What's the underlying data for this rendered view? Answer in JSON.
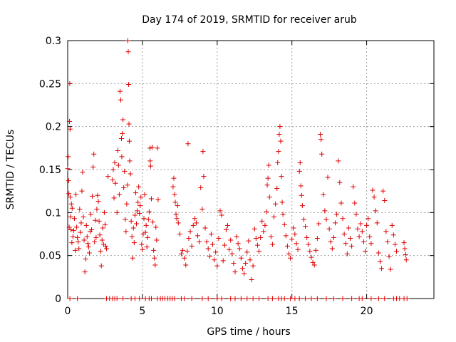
{
  "chart_data": {
    "type": "scatter",
    "title": "Day 174 of 2019, SRMTID for receiver arub",
    "xlabel": "GPS time / hours",
    "ylabel": "SRMTID / TECUs",
    "xlim": [
      0,
      24.5
    ],
    "ylim": [
      0,
      0.3
    ],
    "x_ticks": [
      0,
      5,
      10,
      15,
      20
    ],
    "x_tick_labels": [
      "0",
      "5",
      "10",
      "15",
      "20"
    ],
    "y_ticks": [
      0,
      0.05,
      0.1,
      0.15,
      0.2,
      0.25,
      0.3
    ],
    "y_tick_labels": [
      "0",
      "0.05",
      "0.1",
      "0.15",
      "0.2",
      "0.25",
      "0.3"
    ],
    "grid": true,
    "marker": "plus",
    "series": [
      {
        "name": "SRMTID",
        "color": "#dd0000",
        "points": [
          [
            0.0,
            0.151
          ],
          [
            0.03,
            0.165
          ],
          [
            0.06,
            0.137
          ],
          [
            0.08,
            0.122
          ],
          [
            0.1,
            0.083
          ],
          [
            0.12,
            0.206
          ],
          [
            0.14,
            0.25
          ],
          [
            0.16,
            0.197
          ],
          [
            0.18,
            0.118
          ],
          [
            0.2,
            0.095
          ],
          [
            0.22,
            0.08
          ],
          [
            0.25,
            0.11
          ],
          [
            0.28,
            0.065
          ],
          [
            0.3,
            0.105
          ],
          [
            0.35,
            0.072
          ],
          [
            0.4,
            0.079
          ],
          [
            0.45,
            0.093
          ],
          [
            0.5,
            0.056
          ],
          [
            0.55,
            0.121
          ],
          [
            0.6,
            0.083
          ],
          [
            0.65,
            0.071
          ],
          [
            0.7,
            0.066
          ],
          [
            0.75,
            0.058
          ],
          [
            0.8,
            0.104
          ],
          [
            0.85,
            0.077
          ],
          [
            0.9,
            0.088
          ],
          [
            0.95,
            0.125
          ],
          [
            1.0,
            0.147
          ],
          [
            1.05,
            0.095
          ],
          [
            1.1,
            0.068
          ],
          [
            1.15,
            0.031
          ],
          [
            1.2,
            0.046
          ],
          [
            1.25,
            0.085
          ],
          [
            1.3,
            0.072
          ],
          [
            1.35,
            0.064
          ],
          [
            1.4,
            0.06
          ],
          [
            1.45,
            0.053
          ],
          [
            1.5,
            0.078
          ],
          [
            1.55,
            0.098
          ],
          [
            1.6,
            0.08
          ],
          [
            1.65,
            0.119
          ],
          [
            1.7,
            0.153
          ],
          [
            1.75,
            0.168
          ],
          [
            1.8,
            0.066
          ],
          [
            1.85,
            0.091
          ],
          [
            1.9,
            0.071
          ],
          [
            1.95,
            0.104
          ],
          [
            2.0,
            0.12
          ],
          [
            2.05,
            0.113
          ],
          [
            2.1,
            0.09
          ],
          [
            2.15,
            0.074
          ],
          [
            2.2,
            0.055
          ],
          [
            2.25,
            0.038
          ],
          [
            2.3,
            0.068
          ],
          [
            2.35,
            0.082
          ],
          [
            2.4,
            0.063
          ],
          [
            2.45,
            0.1
          ],
          [
            2.5,
            0.086
          ],
          [
            2.55,
            0.061
          ],
          [
            2.6,
            0.058
          ],
          [
            2.7,
            0.142
          ],
          [
            3.0,
            0.138
          ],
          [
            3.05,
            0.15
          ],
          [
            3.1,
            0.117
          ],
          [
            3.15,
            0.158
          ],
          [
            3.2,
            0.134
          ],
          [
            3.3,
            0.1
          ],
          [
            3.35,
            0.172
          ],
          [
            3.4,
            0.155
          ],
          [
            3.45,
            0.121
          ],
          [
            3.5,
            0.241
          ],
          [
            3.55,
            0.231
          ],
          [
            3.6,
            0.186
          ],
          [
            3.62,
            0.165
          ],
          [
            3.65,
            0.192
          ],
          [
            3.7,
            0.208
          ],
          [
            3.75,
            0.129
          ],
          [
            3.8,
            0.148
          ],
          [
            3.85,
            0.092
          ],
          [
            3.9,
            0.078
          ],
          [
            3.95,
            0.11
          ],
          [
            4.0,
            0.132
          ],
          [
            4.02,
            0.3
          ],
          [
            4.05,
            0.287
          ],
          [
            4.08,
            0.249
          ],
          [
            4.1,
            0.203
          ],
          [
            4.12,
            0.183
          ],
          [
            4.15,
            0.16
          ],
          [
            4.2,
            0.145
          ],
          [
            4.25,
            0.09
          ],
          [
            4.3,
            0.072
          ],
          [
            4.35,
            0.047
          ],
          [
            4.4,
            0.082
          ],
          [
            4.45,
            0.065
          ],
          [
            4.5,
            0.097
          ],
          [
            4.55,
            0.123
          ],
          [
            4.6,
            0.087
          ],
          [
            4.65,
            0.102
          ],
          [
            4.7,
            0.112
          ],
          [
            4.75,
            0.13
          ],
          [
            4.8,
            0.099
          ],
          [
            4.85,
            0.108
          ],
          [
            4.9,
            0.118
          ],
          [
            4.95,
            0.063
          ],
          [
            5.0,
            0.057
          ],
          [
            5.05,
            0.075
          ],
          [
            5.1,
            0.093
          ],
          [
            5.15,
            0.121
          ],
          [
            5.2,
            0.077
          ],
          [
            5.25,
            0.085
          ],
          [
            5.3,
            0.06
          ],
          [
            5.35,
            0.071
          ],
          [
            5.4,
            0.092
          ],
          [
            5.45,
            0.101
          ],
          [
            5.5,
            0.175
          ],
          [
            5.52,
            0.16
          ],
          [
            5.55,
            0.154
          ],
          [
            5.6,
            0.116
          ],
          [
            5.65,
            0.176
          ],
          [
            5.7,
            0.089
          ],
          [
            5.75,
            0.056
          ],
          [
            5.8,
            0.047
          ],
          [
            5.85,
            0.039
          ],
          [
            5.9,
            0.083
          ],
          [
            5.95,
            0.068
          ],
          [
            6.0,
            0.175
          ],
          [
            6.05,
            0.115
          ],
          [
            7.05,
            0.13
          ],
          [
            7.1,
            0.14
          ],
          [
            7.15,
            0.121
          ],
          [
            7.2,
            0.112
          ],
          [
            7.25,
            0.098
          ],
          [
            7.3,
            0.093
          ],
          [
            7.35,
            0.108
          ],
          [
            7.4,
            0.088
          ],
          [
            7.5,
            0.075
          ],
          [
            7.6,
            0.052
          ],
          [
            7.7,
            0.056
          ],
          [
            7.8,
            0.047
          ],
          [
            7.9,
            0.039
          ],
          [
            8.0,
            0.055
          ],
          [
            8.05,
            0.18
          ],
          [
            8.1,
            0.07
          ],
          [
            8.2,
            0.078
          ],
          [
            8.3,
            0.061
          ],
          [
            8.4,
            0.085
          ],
          [
            8.5,
            0.093
          ],
          [
            8.6,
            0.088
          ],
          [
            8.7,
            0.073
          ],
          [
            8.8,
            0.066
          ],
          [
            8.9,
            0.129
          ],
          [
            9.0,
            0.104
          ],
          [
            9.05,
            0.171
          ],
          [
            9.1,
            0.142
          ],
          [
            9.2,
            0.082
          ],
          [
            9.3,
            0.066
          ],
          [
            9.4,
            0.058
          ],
          [
            9.5,
            0.049
          ],
          [
            9.6,
            0.075
          ],
          [
            9.7,
            0.063
          ],
          [
            9.8,
            0.045
          ],
          [
            9.9,
            0.054
          ],
          [
            10.0,
            0.038
          ],
          [
            10.1,
            0.07
          ],
          [
            10.2,
            0.102
          ],
          [
            10.3,
            0.097
          ],
          [
            10.4,
            0.044
          ],
          [
            10.5,
            0.062
          ],
          [
            10.6,
            0.08
          ],
          [
            10.7,
            0.085
          ],
          [
            10.8,
            0.057
          ],
          [
            10.9,
            0.068
          ],
          [
            11.0,
            0.052
          ],
          [
            11.1,
            0.041
          ],
          [
            11.2,
            0.031
          ],
          [
            11.3,
            0.072
          ],
          [
            11.4,
            0.064
          ],
          [
            11.5,
            0.058
          ],
          [
            11.6,
            0.047
          ],
          [
            11.7,
            0.035
          ],
          [
            11.8,
            0.029
          ],
          [
            11.9,
            0.041
          ],
          [
            12.0,
            0.054
          ],
          [
            12.1,
            0.067
          ],
          [
            12.2,
            0.045
          ],
          [
            12.3,
            0.022
          ],
          [
            12.4,
            0.038
          ],
          [
            12.5,
            0.081
          ],
          [
            12.6,
            0.07
          ],
          [
            12.7,
            0.062
          ],
          [
            12.8,
            0.055
          ],
          [
            12.9,
            0.071
          ],
          [
            13.0,
            0.09
          ],
          [
            13.1,
            0.078
          ],
          [
            13.2,
            0.085
          ],
          [
            13.3,
            0.101
          ],
          [
            13.35,
            0.132
          ],
          [
            13.4,
            0.14
          ],
          [
            13.45,
            0.155
          ],
          [
            13.5,
            0.118
          ],
          [
            13.6,
            0.072
          ],
          [
            13.7,
            0.063
          ],
          [
            13.8,
            0.095
          ],
          [
            13.9,
            0.11
          ],
          [
            14.0,
            0.128
          ],
          [
            14.05,
            0.158
          ],
          [
            14.1,
            0.171
          ],
          [
            14.15,
            0.191
          ],
          [
            14.2,
            0.2
          ],
          [
            14.25,
            0.183
          ],
          [
            14.3,
            0.142
          ],
          [
            14.35,
            0.112
          ],
          [
            14.4,
            0.098
          ],
          [
            14.5,
            0.086
          ],
          [
            14.6,
            0.073
          ],
          [
            14.7,
            0.061
          ],
          [
            14.8,
            0.052
          ],
          [
            14.9,
            0.047
          ],
          [
            15.0,
            0.069
          ],
          [
            15.1,
            0.082
          ],
          [
            15.2,
            0.075
          ],
          [
            15.3,
            0.064
          ],
          [
            15.4,
            0.057
          ],
          [
            15.5,
            0.148
          ],
          [
            15.55,
            0.158
          ],
          [
            15.6,
            0.131
          ],
          [
            15.65,
            0.12
          ],
          [
            15.7,
            0.108
          ],
          [
            15.8,
            0.092
          ],
          [
            15.9,
            0.084
          ],
          [
            16.0,
            0.071
          ],
          [
            16.1,
            0.063
          ],
          [
            16.2,
            0.055
          ],
          [
            16.3,
            0.048
          ],
          [
            16.4,
            0.042
          ],
          [
            16.5,
            0.039
          ],
          [
            16.6,
            0.056
          ],
          [
            16.7,
            0.07
          ],
          [
            16.8,
            0.087
          ],
          [
            16.9,
            0.191
          ],
          [
            16.95,
            0.185
          ],
          [
            17.0,
            0.168
          ],
          [
            17.1,
            0.121
          ],
          [
            17.2,
            0.102
          ],
          [
            17.3,
            0.092
          ],
          [
            17.4,
            0.141
          ],
          [
            17.5,
            0.081
          ],
          [
            17.6,
            0.066
          ],
          [
            17.7,
            0.058
          ],
          [
            17.8,
            0.071
          ],
          [
            17.9,
            0.088
          ],
          [
            18.0,
            0.098
          ],
          [
            18.1,
            0.16
          ],
          [
            18.2,
            0.135
          ],
          [
            18.3,
            0.111
          ],
          [
            18.4,
            0.093
          ],
          [
            18.5,
            0.075
          ],
          [
            18.6,
            0.064
          ],
          [
            18.7,
            0.052
          ],
          [
            18.8,
            0.082
          ],
          [
            18.9,
            0.07
          ],
          [
            19.0,
            0.061
          ],
          [
            19.1,
            0.13
          ],
          [
            19.2,
            0.111
          ],
          [
            19.3,
            0.098
          ],
          [
            19.4,
            0.081
          ],
          [
            19.5,
            0.072
          ],
          [
            19.6,
            0.087
          ],
          [
            19.7,
            0.078
          ],
          [
            19.8,
            0.066
          ],
          [
            19.9,
            0.055
          ],
          [
            20.0,
            0.085
          ],
          [
            20.1,
            0.093
          ],
          [
            20.2,
            0.072
          ],
          [
            20.3,
            0.064
          ],
          [
            20.4,
            0.126
          ],
          [
            20.5,
            0.118
          ],
          [
            20.6,
            0.102
          ],
          [
            20.7,
            0.088
          ],
          [
            20.8,
            0.053
          ],
          [
            20.9,
            0.043
          ],
          [
            21.0,
            0.035
          ],
          [
            21.1,
            0.125
          ],
          [
            21.2,
            0.114
          ],
          [
            21.3,
            0.078
          ],
          [
            21.4,
            0.066
          ],
          [
            21.5,
            0.049
          ],
          [
            21.6,
            0.034
          ],
          [
            21.7,
            0.085
          ],
          [
            21.8,
            0.074
          ],
          [
            21.9,
            0.063
          ],
          [
            22.0,
            0.055
          ],
          [
            22.5,
            0.065
          ],
          [
            22.55,
            0.058
          ],
          [
            22.6,
            0.051
          ],
          [
            22.65,
            0.045
          ]
        ]
      }
    ],
    "zero_points_x": [
      0.15,
      0.65,
      2.6,
      2.8,
      3.0,
      3.15,
      3.3,
      3.7,
      4.25,
      4.5,
      4.8,
      5.2,
      5.45,
      5.6,
      6.0,
      6.2,
      6.35,
      6.5,
      6.7,
      6.85,
      7.0,
      7.15,
      7.6,
      7.8,
      8.3,
      9.0,
      9.4,
      10.0,
      10.3,
      10.9,
      11.2,
      11.6,
      12.0,
      12.4,
      12.8,
      13.4,
      13.7,
      14.1,
      14.3,
      14.5,
      14.9,
      15.2,
      15.5,
      15.9,
      16.3,
      16.7,
      17.3,
      17.8,
      18.4,
      19.0,
      19.5,
      19.7,
      20.3,
      20.8,
      21.2,
      21.8,
      22.0,
      22.2,
      22.5,
      22.7
    ]
  }
}
